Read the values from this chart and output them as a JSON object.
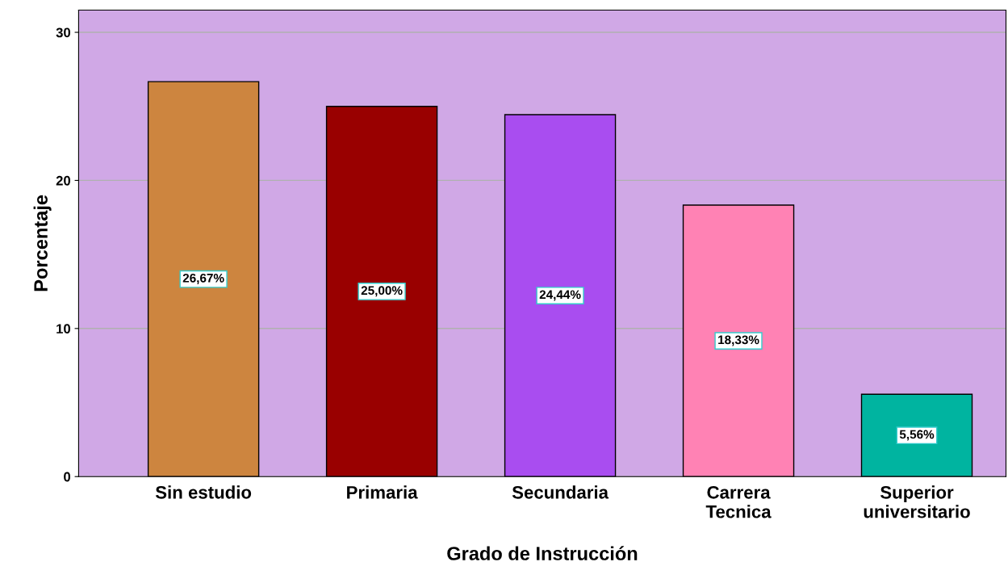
{
  "chart_data": {
    "type": "bar",
    "xlabel": "Grado de Instrucción",
    "ylabel": "Porcentaje",
    "categories": [
      "Sin estudio",
      "Primaria",
      "Secundaria",
      "Carrera\nTecnica",
      "Superior\nuniversitario"
    ],
    "values": [
      26.67,
      25.0,
      24.44,
      18.33,
      5.56
    ],
    "value_labels": [
      "26,67%",
      "25,00%",
      "24,44%",
      "18,33%",
      "5,56%"
    ],
    "colors": [
      "#cd853f",
      "#990000",
      "#a94df0",
      "#ff82b4",
      "#00b4a0"
    ],
    "ylim": [
      0,
      31.5
    ],
    "yticks": [
      0,
      10,
      20,
      30
    ],
    "grid": "y",
    "legend": false
  }
}
